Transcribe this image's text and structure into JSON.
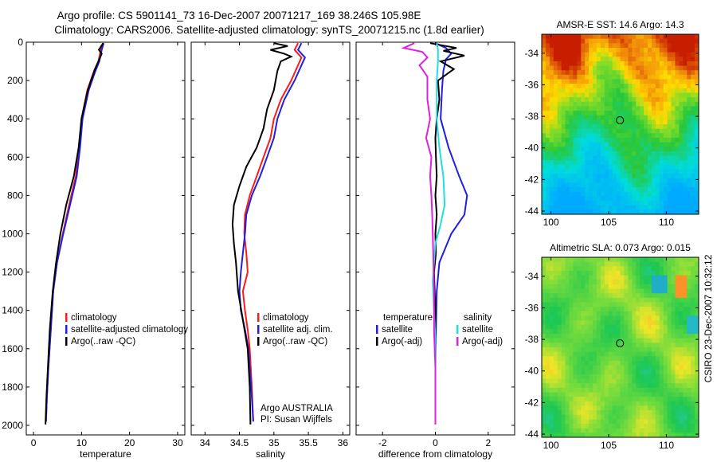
{
  "title": {
    "line1": "Argo profile: CS 5901141_73 16-Dec-2007 20071217_169 38.246S 105.98E",
    "line2": "Climatology: CARS2006. Satellite-adjusted climatology: synTS_20071215.nc (1.8d earlier)"
  },
  "side_label": "CSIRO 23-Dec-2007 10:32:12",
  "colors": {
    "climatology": "#ff1a1a",
    "satellite": "#1f1fe0",
    "argo": "#000000",
    "satellite_sal": "#1fe0e0",
    "argo_sal": "#e01fe0"
  },
  "chart_data": [
    {
      "type": "line",
      "name": "temperature-panel",
      "xlabel": "temperature",
      "ylabel": "",
      "xlim": [
        -1.5,
        31.5
      ],
      "ylim": [
        2050,
        0
      ],
      "yreversed": true,
      "xticks": [
        0,
        10,
        20,
        30
      ],
      "yticks": [
        0,
        200,
        400,
        600,
        800,
        1000,
        1200,
        1400,
        1600,
        1800,
        2000
      ],
      "legend": {
        "placement": "lower-middle",
        "entries": [
          "climatology",
          "satellite-adjusted climatology",
          "Argo(..raw -QC)"
        ],
        "color_keys": [
          "climatology",
          "satellite",
          "argo"
        ]
      },
      "series": [
        {
          "name": "climatology",
          "color_key": "climatology",
          "points": [
            [
              14.6,
              5
            ],
            [
              14.0,
              40
            ],
            [
              13.5,
              100
            ],
            [
              12.6,
              150
            ],
            [
              11.2,
              250
            ],
            [
              10.0,
              400
            ],
            [
              9.6,
              550
            ],
            [
              8.8,
              700
            ],
            [
              7.4,
              850
            ],
            [
              6.1,
              1000
            ],
            [
              4.9,
              1150
            ],
            [
              4.1,
              1300
            ],
            [
              3.6,
              1500
            ],
            [
              3.1,
              1700
            ],
            [
              2.8,
              1850
            ],
            [
              2.6,
              1980
            ]
          ]
        },
        {
          "name": "satellite-adjusted climatology",
          "color_key": "satellite",
          "points": [
            [
              14.6,
              5
            ],
            [
              14.2,
              40
            ],
            [
              13.7,
              100
            ],
            [
              12.9,
              150
            ],
            [
              11.5,
              250
            ],
            [
              10.2,
              400
            ],
            [
              9.7,
              550
            ],
            [
              9.0,
              700
            ],
            [
              7.6,
              850
            ],
            [
              6.2,
              1000
            ],
            [
              4.9,
              1150
            ],
            [
              4.1,
              1300
            ],
            [
              3.6,
              1500
            ],
            [
              3.1,
              1700
            ],
            [
              2.8,
              1850
            ],
            [
              2.6,
              1980
            ]
          ]
        },
        {
          "name": "Argo(..raw -QC)",
          "color_key": "argo",
          "points": [
            [
              14.5,
              5
            ],
            [
              13.6,
              40
            ],
            [
              14.2,
              60
            ],
            [
              13.5,
              100
            ],
            [
              12.8,
              140
            ],
            [
              11.3,
              250
            ],
            [
              10.0,
              400
            ],
            [
              9.4,
              550
            ],
            [
              8.4,
              700
            ],
            [
              6.8,
              850
            ],
            [
              5.6,
              1000
            ],
            [
              4.7,
              1150
            ],
            [
              4.0,
              1300
            ],
            [
              3.4,
              1500
            ],
            [
              3.0,
              1700
            ],
            [
              2.7,
              1850
            ],
            [
              2.5,
              1995
            ]
          ]
        }
      ]
    },
    {
      "type": "line",
      "name": "salinity-panel",
      "xlabel": "salinity",
      "xlim": [
        33.8,
        36.1
      ],
      "ylim": [
        2050,
        0
      ],
      "yreversed": true,
      "xticks": [
        34,
        34.5,
        35,
        35.5,
        36
      ],
      "xtick_labels": [
        "34",
        "34.5",
        "35",
        "35.5",
        "36"
      ],
      "legend": {
        "placement": "lower-middle",
        "entries": [
          "climatology",
          "satellite adj. clim.",
          "Argo(..raw -QC)"
        ],
        "color_keys": [
          "climatology",
          "satellite",
          "argo"
        ]
      },
      "annotation": [
        "Argo AUSTRALIA",
        "PI: Susan Wijffels"
      ],
      "series": [
        {
          "name": "climatology",
          "color_key": "climatology",
          "points": [
            [
              35.35,
              5
            ],
            [
              35.3,
              40
            ],
            [
              35.4,
              80
            ],
            [
              35.35,
              120
            ],
            [
              35.25,
              200
            ],
            [
              35.1,
              300
            ],
            [
              35.0,
              400
            ],
            [
              34.95,
              500
            ],
            [
              34.85,
              600
            ],
            [
              34.75,
              700
            ],
            [
              34.65,
              800
            ],
            [
              34.58,
              900
            ],
            [
              34.57,
              1000
            ],
            [
              34.6,
              1100
            ],
            [
              34.62,
              1200
            ],
            [
              34.55,
              1300
            ],
            [
              34.58,
              1400
            ],
            [
              34.62,
              1500
            ],
            [
              34.65,
              1600
            ],
            [
              34.68,
              1800
            ],
            [
              34.7,
              1980
            ]
          ]
        },
        {
          "name": "satellite adj. clim.",
          "color_key": "satellite",
          "points": [
            [
              35.4,
              5
            ],
            [
              35.35,
              40
            ],
            [
              35.45,
              80
            ],
            [
              35.4,
              120
            ],
            [
              35.3,
              200
            ],
            [
              35.15,
              300
            ],
            [
              35.05,
              400
            ],
            [
              35.0,
              500
            ],
            [
              34.9,
              600
            ],
            [
              34.8,
              700
            ],
            [
              34.68,
              800
            ],
            [
              34.6,
              900
            ],
            [
              34.58,
              1000
            ],
            [
              34.55,
              1100
            ],
            [
              34.52,
              1200
            ],
            [
              34.5,
              1300
            ],
            [
              34.52,
              1400
            ],
            [
              34.58,
              1500
            ],
            [
              34.63,
              1600
            ],
            [
              34.67,
              1800
            ],
            [
              34.7,
              1980
            ]
          ]
        },
        {
          "name": "Argo(..raw -QC)",
          "color_key": "argo",
          "points": [
            [
              35.0,
              5
            ],
            [
              35.2,
              20
            ],
            [
              34.95,
              40
            ],
            [
              35.15,
              60
            ],
            [
              35.25,
              75
            ],
            [
              35.1,
              100
            ],
            [
              35.05,
              150
            ],
            [
              35.0,
              250
            ],
            [
              34.9,
              350
            ],
            [
              34.85,
              450
            ],
            [
              34.75,
              550
            ],
            [
              34.6,
              650
            ],
            [
              34.5,
              750
            ],
            [
              34.42,
              850
            ],
            [
              34.4,
              950
            ],
            [
              34.42,
              1050
            ],
            [
              34.45,
              1150
            ],
            [
              34.48,
              1300
            ],
            [
              34.55,
              1450
            ],
            [
              34.62,
              1600
            ],
            [
              34.65,
              1800
            ],
            [
              34.66,
              1995
            ]
          ]
        }
      ]
    },
    {
      "type": "line",
      "name": "difference-panel",
      "xlabel": "difference from climatology",
      "xlim": [
        -3,
        3
      ],
      "ylim": [
        2050,
        0
      ],
      "yreversed": true,
      "xticks": [
        -2,
        0,
        2
      ],
      "legend": {
        "placement": "lower-middle",
        "groups": [
          {
            "heading": "temperature",
            "entries": [
              "satellite",
              "Argo(-adj)"
            ],
            "color_keys": [
              "satellite",
              "argo"
            ]
          },
          {
            "heading": "salinity",
            "entries": [
              "satellite",
              "Argo(-adj)"
            ],
            "color_keys": [
              "satellite_sal",
              "argo_sal"
            ]
          }
        ]
      },
      "series": [
        {
          "name": "temperature satellite",
          "color_key": "satellite",
          "points": [
            [
              0.0,
              5
            ],
            [
              0.4,
              30
            ],
            [
              0.6,
              60
            ],
            [
              0.4,
              90
            ],
            [
              0.3,
              150
            ],
            [
              0.25,
              250
            ],
            [
              0.2,
              400
            ],
            [
              0.5,
              550
            ],
            [
              0.9,
              700
            ],
            [
              1.2,
              800
            ],
            [
              1.1,
              900
            ],
            [
              0.6,
              1000
            ],
            [
              0.15,
              1150
            ],
            [
              0.05,
              1300
            ],
            [
              0.02,
              1500
            ],
            [
              0.0,
              1700
            ],
            [
              0.0,
              1980
            ]
          ]
        },
        {
          "name": "temperature Argo(-adj)",
          "color_key": "argo",
          "points": [
            [
              -0.2,
              5
            ],
            [
              0.8,
              30
            ],
            [
              0.3,
              45
            ],
            [
              1.1,
              70
            ],
            [
              0.2,
              100
            ],
            [
              0.7,
              140
            ],
            [
              0.1,
              200
            ],
            [
              0.15,
              300
            ],
            [
              0.05,
              400
            ],
            [
              0.0,
              500
            ],
            [
              0.02,
              600
            ],
            [
              0.05,
              700
            ],
            [
              0.0,
              800
            ],
            [
              0.05,
              900
            ],
            [
              0.0,
              1000
            ],
            [
              0.02,
              1100
            ],
            [
              -0.05,
              1200
            ],
            [
              0.0,
              1400
            ],
            [
              0.0,
              1600
            ],
            [
              0.0,
              1800
            ],
            [
              0.0,
              1995
            ]
          ]
        },
        {
          "name": "salinity satellite",
          "color_key": "satellite_sal",
          "points": [
            [
              0.05,
              5
            ],
            [
              0.1,
              40
            ],
            [
              0.1,
              100
            ],
            [
              0.05,
              200
            ],
            [
              0.05,
              300
            ],
            [
              0.05,
              400
            ],
            [
              0.15,
              550
            ],
            [
              0.3,
              700
            ],
            [
              0.35,
              850
            ],
            [
              0.2,
              950
            ],
            [
              0.0,
              1050
            ],
            [
              -0.05,
              1150
            ],
            [
              -0.1,
              1250
            ],
            [
              -0.05,
              1400
            ],
            [
              0.0,
              1550
            ],
            [
              0.0,
              1700
            ],
            [
              0.0,
              1980
            ]
          ]
        },
        {
          "name": "salinity Argo(-adj)",
          "color_key": "argo_sal",
          "points": [
            [
              -0.8,
              5
            ],
            [
              -1.2,
              30
            ],
            [
              -0.5,
              50
            ],
            [
              -0.3,
              80
            ],
            [
              -0.6,
              120
            ],
            [
              -0.3,
              180
            ],
            [
              -0.3,
              300
            ],
            [
              -0.2,
              400
            ],
            [
              -0.35,
              500
            ],
            [
              -0.15,
              600
            ],
            [
              -0.2,
              700
            ],
            [
              -0.15,
              800
            ],
            [
              -0.12,
              900
            ],
            [
              -0.1,
              1000
            ],
            [
              -0.08,
              1100
            ],
            [
              -0.05,
              1300
            ],
            [
              -0.05,
              1500
            ],
            [
              0.0,
              1700
            ],
            [
              0.0,
              1995
            ]
          ]
        }
      ]
    },
    {
      "type": "heatmap",
      "name": "sst-map",
      "title": "AMSR-E SST: 14.6 Argo: 14.3",
      "xlim": [
        99.2,
        112.8
      ],
      "ylim": [
        -44.2,
        -32.8
      ],
      "xticks": [
        100,
        105,
        110
      ],
      "yticks": [
        -34,
        -36,
        -38,
        -40,
        -42,
        -44
      ],
      "marker": {
        "lon": 105.98,
        "lat": -38.246
      }
    },
    {
      "type": "heatmap",
      "name": "sla-map",
      "title": "Altimetric SLA: 0.073 Argo: 0.015",
      "xlim": [
        99.2,
        112.8
      ],
      "ylim": [
        -44.2,
        -32.8
      ],
      "xticks": [
        100,
        105,
        110
      ],
      "yticks": [
        -34,
        -36,
        -38,
        -40,
        -42,
        -44
      ],
      "marker": {
        "lon": 105.98,
        "lat": -38.246
      }
    }
  ]
}
